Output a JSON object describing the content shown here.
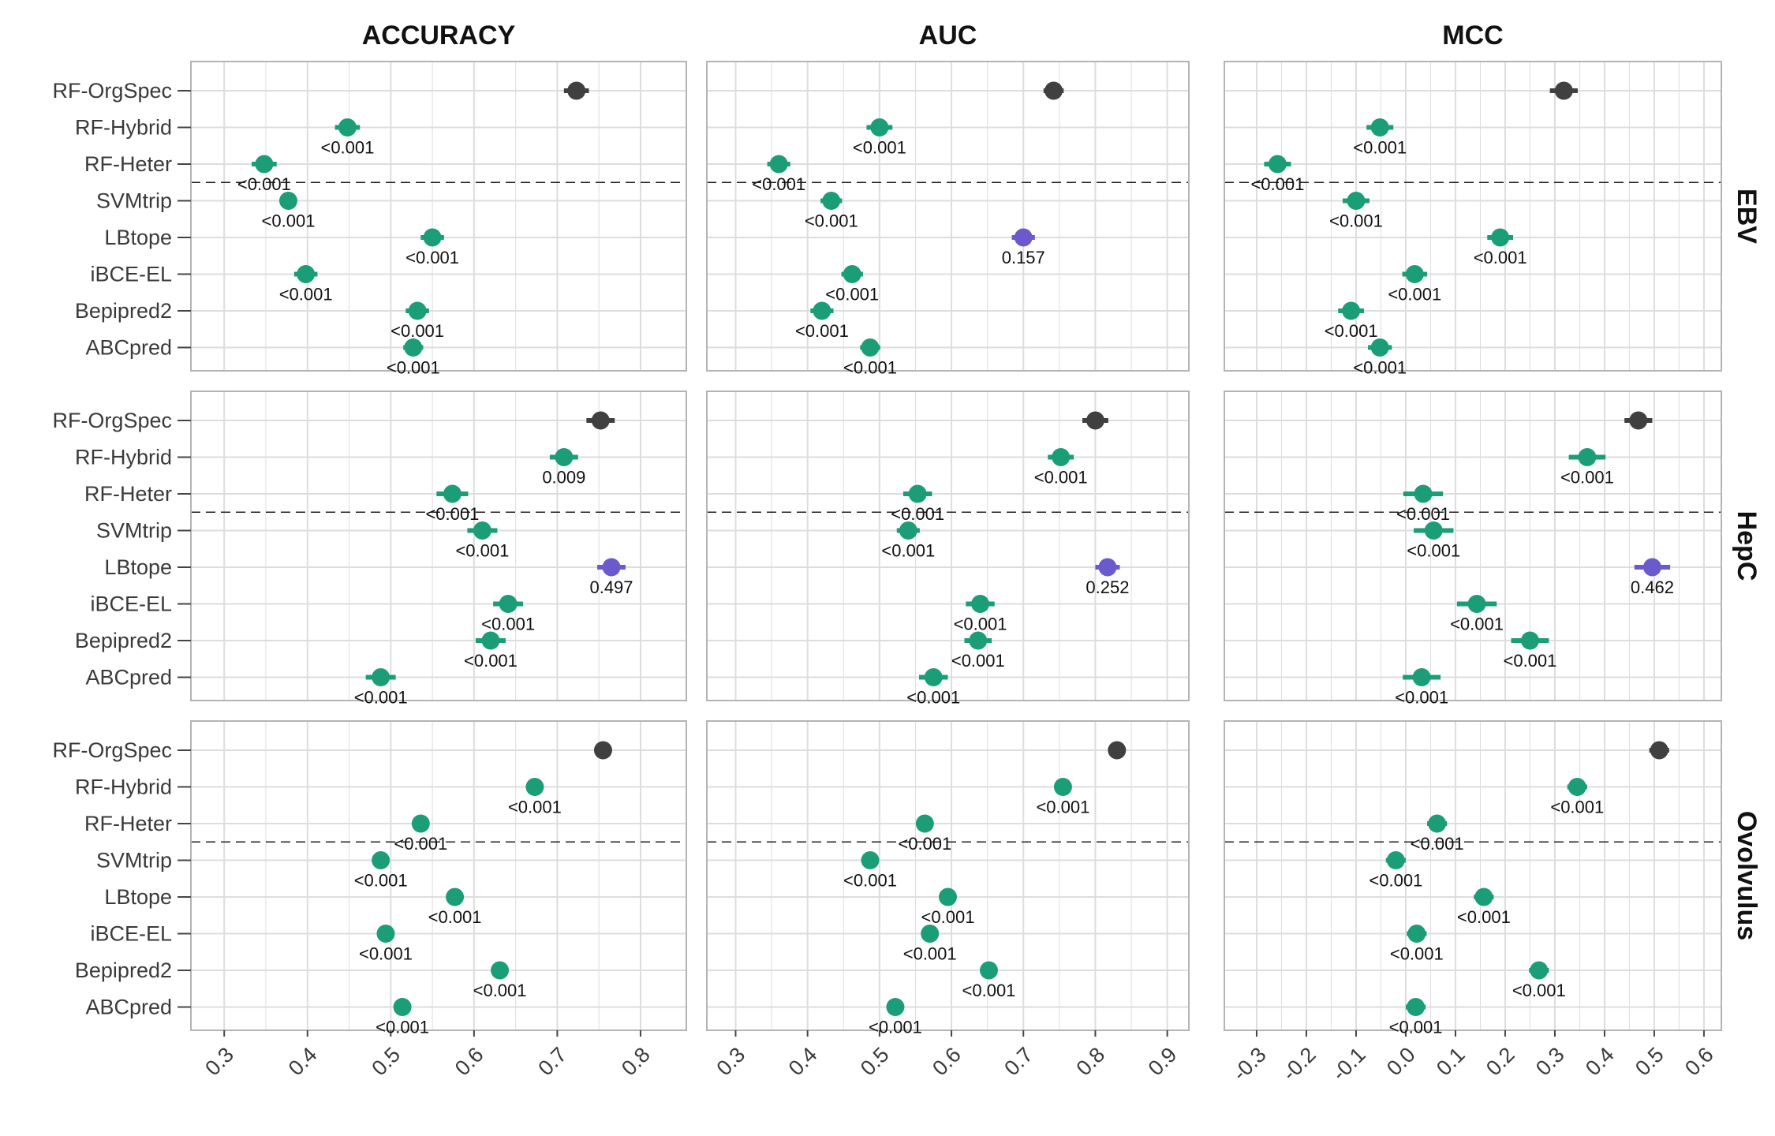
{
  "chart_data": {
    "type": "scatter",
    "title": "",
    "columns": [
      "ACCURACY",
      "AUC",
      "MCC"
    ],
    "rows": [
      "EBV",
      "HepC",
      "Ovolvulus"
    ],
    "methods": [
      "RF-OrgSpec",
      "RF-Hybrid",
      "RF-Heter",
      "SVMtrip",
      "LBtope",
      "iBCE-EL",
      "Bepipred2",
      "ABCpred"
    ],
    "colors": {
      "reference": "#404040",
      "significant": "#1b9e77",
      "not_significant": "#6a5acd",
      "grid": "#dddddd",
      "panel_border": "#b4b4b4"
    },
    "axes": {
      "ACCURACY": {
        "xlim": [
          0.26,
          0.855
        ],
        "ticks": [
          0.3,
          0.4,
          0.5,
          0.6,
          0.7,
          0.8
        ],
        "tick_labels": [
          "0.3",
          "0.4",
          "0.5",
          "0.6",
          "0.7",
          "0.8"
        ]
      },
      "AUC": {
        "xlim": [
          0.26,
          0.93
        ],
        "ticks": [
          0.3,
          0.4,
          0.5,
          0.6,
          0.7,
          0.8,
          0.9
        ],
        "tick_labels": [
          "0.3",
          "0.4",
          "0.5",
          "0.6",
          "0.7",
          "0.8",
          "0.9"
        ]
      },
      "MCC": {
        "xlim": [
          -0.365,
          0.635
        ],
        "ticks": [
          -0.3,
          -0.2,
          -0.1,
          0.0,
          0.1,
          0.2,
          0.3,
          0.4,
          0.5,
          0.6
        ],
        "tick_labels": [
          "-0.3",
          "-0.2",
          "-0.1",
          "0.0",
          "0.1",
          "0.2",
          "0.3",
          "0.4",
          "0.5",
          "0.6"
        ]
      }
    },
    "separator_between": [
      "RF-Heter",
      "SVMtrip"
    ],
    "panels": [
      {
        "row": "EBV",
        "column": "ACCURACY",
        "points": [
          {
            "method": "RF-OrgSpec",
            "value": 0.723,
            "ci": [
              0.708,
              0.738
            ],
            "p": "",
            "group": "reference"
          },
          {
            "method": "RF-Hybrid",
            "value": 0.448,
            "ci": [
              0.433,
              0.463
            ],
            "p": "<0.001",
            "group": "significant"
          },
          {
            "method": "RF-Heter",
            "value": 0.348,
            "ci": [
              0.333,
              0.363
            ],
            "p": "<0.001",
            "group": "significant"
          },
          {
            "method": "SVMtrip",
            "value": 0.377,
            "ci": [
              0.367,
              0.387
            ],
            "p": "<0.001",
            "group": "significant"
          },
          {
            "method": "LBtope",
            "value": 0.55,
            "ci": [
              0.536,
              0.564
            ],
            "p": "<0.001",
            "group": "significant"
          },
          {
            "method": "iBCE-EL",
            "value": 0.398,
            "ci": [
              0.384,
              0.412
            ],
            "p": "<0.001",
            "group": "significant"
          },
          {
            "method": "Bepipred2",
            "value": 0.532,
            "ci": [
              0.518,
              0.546
            ],
            "p": "<0.001",
            "group": "significant"
          },
          {
            "method": "ABCpred",
            "value": 0.527,
            "ci": [
              0.515,
              0.539
            ],
            "p": "<0.001",
            "group": "significant"
          }
        ]
      },
      {
        "row": "EBV",
        "column": "AUC",
        "points": [
          {
            "method": "RF-OrgSpec",
            "value": 0.742,
            "ci": [
              0.728,
              0.756
            ],
            "p": "",
            "group": "reference"
          },
          {
            "method": "RF-Hybrid",
            "value": 0.5,
            "ci": [
              0.482,
              0.518
            ],
            "p": "<0.001",
            "group": "significant"
          },
          {
            "method": "RF-Heter",
            "value": 0.36,
            "ci": [
              0.344,
              0.376
            ],
            "p": "<0.001",
            "group": "significant"
          },
          {
            "method": "SVMtrip",
            "value": 0.433,
            "ci": [
              0.418,
              0.448
            ],
            "p": "<0.001",
            "group": "significant"
          },
          {
            "method": "LBtope",
            "value": 0.7,
            "ci": [
              0.684,
              0.716
            ],
            "p": "0.157",
            "group": "not_significant"
          },
          {
            "method": "iBCE-EL",
            "value": 0.462,
            "ci": [
              0.447,
              0.477
            ],
            "p": "<0.001",
            "group": "significant"
          },
          {
            "method": "Bepipred2",
            "value": 0.42,
            "ci": [
              0.404,
              0.436
            ],
            "p": "<0.001",
            "group": "significant"
          },
          {
            "method": "ABCpred",
            "value": 0.487,
            "ci": [
              0.473,
              0.501
            ],
            "p": "<0.001",
            "group": "significant"
          }
        ]
      },
      {
        "row": "EBV",
        "column": "MCC",
        "points": [
          {
            "method": "RF-OrgSpec",
            "value": 0.318,
            "ci": [
              0.29,
              0.346
            ],
            "p": "",
            "group": "reference"
          },
          {
            "method": "RF-Hybrid",
            "value": -0.052,
            "ci": [
              -0.079,
              -0.025
            ],
            "p": "<0.001",
            "group": "significant"
          },
          {
            "method": "RF-Heter",
            "value": -0.258,
            "ci": [
              -0.285,
              -0.231
            ],
            "p": "<0.001",
            "group": "significant"
          },
          {
            "method": "SVMtrip",
            "value": -0.1,
            "ci": [
              -0.127,
              -0.073
            ],
            "p": "<0.001",
            "group": "significant"
          },
          {
            "method": "LBtope",
            "value": 0.19,
            "ci": [
              0.164,
              0.216
            ],
            "p": "<0.001",
            "group": "significant"
          },
          {
            "method": "iBCE-EL",
            "value": 0.018,
            "ci": [
              -0.007,
              0.043
            ],
            "p": "<0.001",
            "group": "significant"
          },
          {
            "method": "Bepipred2",
            "value": -0.11,
            "ci": [
              -0.136,
              -0.084
            ],
            "p": "<0.001",
            "group": "significant"
          },
          {
            "method": "ABCpred",
            "value": -0.052,
            "ci": [
              -0.076,
              -0.028
            ],
            "p": "<0.001",
            "group": "significant"
          }
        ]
      },
      {
        "row": "HepC",
        "column": "ACCURACY",
        "points": [
          {
            "method": "RF-OrgSpec",
            "value": 0.752,
            "ci": [
              0.735,
              0.769
            ],
            "p": "",
            "group": "reference"
          },
          {
            "method": "RF-Hybrid",
            "value": 0.708,
            "ci": [
              0.691,
              0.725
            ],
            "p": "0.009",
            "group": "significant"
          },
          {
            "method": "RF-Heter",
            "value": 0.574,
            "ci": [
              0.555,
              0.593
            ],
            "p": "<0.001",
            "group": "significant"
          },
          {
            "method": "SVMtrip",
            "value": 0.61,
            "ci": [
              0.592,
              0.628
            ],
            "p": "<0.001",
            "group": "significant"
          },
          {
            "method": "LBtope",
            "value": 0.765,
            "ci": [
              0.748,
              0.782
            ],
            "p": "0.497",
            "group": "not_significant"
          },
          {
            "method": "iBCE-EL",
            "value": 0.641,
            "ci": [
              0.623,
              0.659
            ],
            "p": "<0.001",
            "group": "significant"
          },
          {
            "method": "Bepipred2",
            "value": 0.62,
            "ci": [
              0.602,
              0.638
            ],
            "p": "<0.001",
            "group": "significant"
          },
          {
            "method": "ABCpred",
            "value": 0.488,
            "ci": [
              0.47,
              0.506
            ],
            "p": "<0.001",
            "group": "significant"
          }
        ]
      },
      {
        "row": "HepC",
        "column": "AUC",
        "points": [
          {
            "method": "RF-OrgSpec",
            "value": 0.8,
            "ci": [
              0.782,
              0.818
            ],
            "p": "",
            "group": "reference"
          },
          {
            "method": "RF-Hybrid",
            "value": 0.752,
            "ci": [
              0.734,
              0.77
            ],
            "p": "<0.001",
            "group": "significant"
          },
          {
            "method": "RF-Heter",
            "value": 0.553,
            "ci": [
              0.533,
              0.573
            ],
            "p": "<0.001",
            "group": "significant"
          },
          {
            "method": "SVMtrip",
            "value": 0.54,
            "ci": [
              0.524,
              0.556
            ],
            "p": "<0.001",
            "group": "significant"
          },
          {
            "method": "LBtope",
            "value": 0.817,
            "ci": [
              0.8,
              0.834
            ],
            "p": "0.252",
            "group": "not_significant"
          },
          {
            "method": "iBCE-EL",
            "value": 0.64,
            "ci": [
              0.62,
              0.66
            ],
            "p": "<0.001",
            "group": "significant"
          },
          {
            "method": "Bepipred2",
            "value": 0.637,
            "ci": [
              0.618,
              0.656
            ],
            "p": "<0.001",
            "group": "significant"
          },
          {
            "method": "ABCpred",
            "value": 0.575,
            "ci": [
              0.555,
              0.595
            ],
            "p": "<0.001",
            "group": "significant"
          }
        ]
      },
      {
        "row": "HepC",
        "column": "MCC",
        "points": [
          {
            "method": "RF-OrgSpec",
            "value": 0.468,
            "ci": [
              0.44,
              0.496
            ],
            "p": "",
            "group": "reference"
          },
          {
            "method": "RF-Hybrid",
            "value": 0.365,
            "ci": [
              0.328,
              0.402
            ],
            "p": "<0.001",
            "group": "significant"
          },
          {
            "method": "RF-Heter",
            "value": 0.035,
            "ci": [
              -0.005,
              0.075
            ],
            "p": "<0.001",
            "group": "significant"
          },
          {
            "method": "SVMtrip",
            "value": 0.056,
            "ci": [
              0.016,
              0.096
            ],
            "p": "<0.001",
            "group": "significant"
          },
          {
            "method": "LBtope",
            "value": 0.496,
            "ci": [
              0.46,
              0.532
            ],
            "p": "0.462",
            "group": "not_significant"
          },
          {
            "method": "iBCE-EL",
            "value": 0.143,
            "ci": [
              0.103,
              0.183
            ],
            "p": "<0.001",
            "group": "significant"
          },
          {
            "method": "Bepipred2",
            "value": 0.25,
            "ci": [
              0.212,
              0.288
            ],
            "p": "<0.001",
            "group": "significant"
          },
          {
            "method": "ABCpred",
            "value": 0.032,
            "ci": [
              -0.006,
              0.07
            ],
            "p": "<0.001",
            "group": "significant"
          }
        ]
      },
      {
        "row": "Ovolvulus",
        "column": "ACCURACY",
        "points": [
          {
            "method": "RF-OrgSpec",
            "value": 0.755,
            "ci": [
              0.745,
              0.765
            ],
            "p": "",
            "group": "reference"
          },
          {
            "method": "RF-Hybrid",
            "value": 0.673,
            "ci": [
              0.663,
              0.683
            ],
            "p": "<0.001",
            "group": "significant"
          },
          {
            "method": "RF-Heter",
            "value": 0.536,
            "ci": [
              0.526,
              0.546
            ],
            "p": "<0.001",
            "group": "significant"
          },
          {
            "method": "SVMtrip",
            "value": 0.488,
            "ci": [
              0.478,
              0.498
            ],
            "p": "<0.001",
            "group": "significant"
          },
          {
            "method": "LBtope",
            "value": 0.577,
            "ci": [
              0.567,
              0.587
            ],
            "p": "<0.001",
            "group": "significant"
          },
          {
            "method": "iBCE-EL",
            "value": 0.494,
            "ci": [
              0.484,
              0.504
            ],
            "p": "<0.001",
            "group": "significant"
          },
          {
            "method": "Bepipred2",
            "value": 0.631,
            "ci": [
              0.621,
              0.641
            ],
            "p": "<0.001",
            "group": "significant"
          },
          {
            "method": "ABCpred",
            "value": 0.514,
            "ci": [
              0.504,
              0.524
            ],
            "p": "<0.001",
            "group": "significant"
          }
        ]
      },
      {
        "row": "Ovolvulus",
        "column": "AUC",
        "points": [
          {
            "method": "RF-OrgSpec",
            "value": 0.83,
            "ci": [
              0.82,
              0.84
            ],
            "p": "",
            "group": "reference"
          },
          {
            "method": "RF-Hybrid",
            "value": 0.755,
            "ci": [
              0.745,
              0.765
            ],
            "p": "<0.001",
            "group": "significant"
          },
          {
            "method": "RF-Heter",
            "value": 0.563,
            "ci": [
              0.552,
              0.574
            ],
            "p": "<0.001",
            "group": "significant"
          },
          {
            "method": "SVMtrip",
            "value": 0.487,
            "ci": [
              0.477,
              0.497
            ],
            "p": "<0.001",
            "group": "significant"
          },
          {
            "method": "LBtope",
            "value": 0.595,
            "ci": [
              0.584,
              0.606
            ],
            "p": "<0.001",
            "group": "significant"
          },
          {
            "method": "iBCE-EL",
            "value": 0.57,
            "ci": [
              0.559,
              0.581
            ],
            "p": "<0.001",
            "group": "significant"
          },
          {
            "method": "Bepipred2",
            "value": 0.652,
            "ci": [
              0.641,
              0.663
            ],
            "p": "<0.001",
            "group": "significant"
          },
          {
            "method": "ABCpred",
            "value": 0.522,
            "ci": [
              0.511,
              0.533
            ],
            "p": "<0.001",
            "group": "significant"
          }
        ]
      },
      {
        "row": "Ovolvulus",
        "column": "MCC",
        "points": [
          {
            "method": "RF-OrgSpec",
            "value": 0.51,
            "ci": [
              0.49,
              0.53
            ],
            "p": "",
            "group": "reference"
          },
          {
            "method": "RF-Hybrid",
            "value": 0.345,
            "ci": [
              0.325,
              0.365
            ],
            "p": "<0.001",
            "group": "significant"
          },
          {
            "method": "RF-Heter",
            "value": 0.063,
            "ci": [
              0.043,
              0.083
            ],
            "p": "<0.001",
            "group": "significant"
          },
          {
            "method": "SVMtrip",
            "value": -0.02,
            "ci": [
              -0.04,
              0.0
            ],
            "p": "<0.001",
            "group": "significant"
          },
          {
            "method": "LBtope",
            "value": 0.157,
            "ci": [
              0.137,
              0.177
            ],
            "p": "<0.001",
            "group": "significant"
          },
          {
            "method": "iBCE-EL",
            "value": 0.022,
            "ci": [
              0.002,
              0.042
            ],
            "p": "<0.001",
            "group": "significant"
          },
          {
            "method": "Bepipred2",
            "value": 0.268,
            "ci": [
              0.248,
              0.288
            ],
            "p": "<0.001",
            "group": "significant"
          },
          {
            "method": "ABCpred",
            "value": 0.02,
            "ci": [
              0.0,
              0.04
            ],
            "p": "<0.001",
            "group": "significant"
          }
        ]
      }
    ]
  }
}
